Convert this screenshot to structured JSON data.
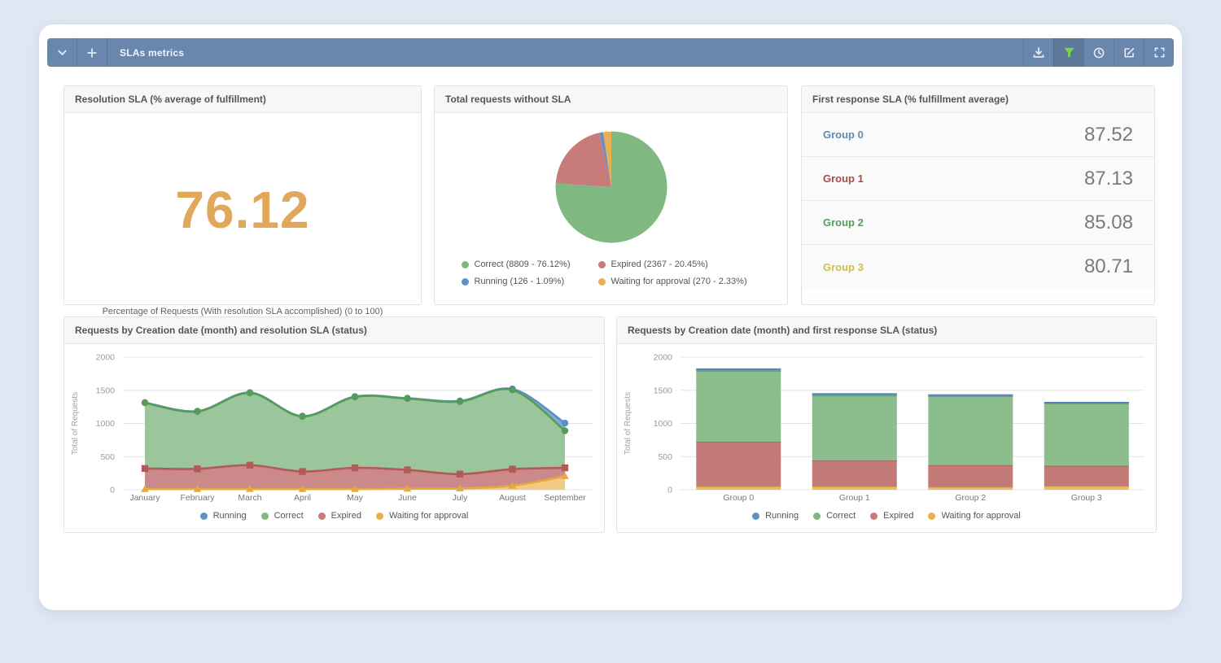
{
  "page": {
    "background": "#dfe7f2",
    "panel_background": "#ffffff"
  },
  "toolbar": {
    "title": "SLAs metrics",
    "background": "#6986ac",
    "left_buttons": [
      {
        "name": "collapse",
        "icon": "chevron-down-icon"
      },
      {
        "name": "add",
        "icon": "plus-icon"
      }
    ],
    "right_buttons": [
      {
        "name": "download",
        "icon": "download-icon"
      },
      {
        "name": "filter",
        "icon": "filter-icon",
        "icon_color": "#7ed04f",
        "active": true
      },
      {
        "name": "history",
        "icon": "clock-icon"
      },
      {
        "name": "edit",
        "icon": "edit-icon"
      },
      {
        "name": "fullscreen",
        "icon": "expand-icon"
      }
    ]
  },
  "cards": {
    "resolution_sla": {
      "title": "Resolution SLA (% average of fulfillment)",
      "value": "76.12",
      "value_color": "#e1a75b",
      "caption": "Percentage of Requests (With resolution SLA accomplished) (0 to 100)"
    },
    "requests_without_sla": {
      "title": "Total requests without SLA",
      "legend": [
        {
          "label": "Correct (8809 - 76.12%)",
          "color": "#7fb981"
        },
        {
          "label": "Expired (2367 - 20.45%)",
          "color": "#c77b7a"
        },
        {
          "label": "Running (126 - 1.09%)",
          "color": "#6292c4"
        },
        {
          "label": "Waiting for approval (270 - 2.33%)",
          "color": "#e9b052"
        }
      ]
    },
    "first_response_sla": {
      "title": "First response SLA (% fulfillment average)",
      "rows": [
        {
          "label": "Group 0",
          "value": "87.52",
          "color": "#5f8ab8"
        },
        {
          "label": "Group 1",
          "value": "87.13",
          "color": "#aa4d44"
        },
        {
          "label": "Group 2",
          "value": "85.08",
          "color": "#55a058"
        },
        {
          "label": "Group 3",
          "value": "80.71",
          "color": "#cdbf4e"
        }
      ]
    },
    "resolution_by_month": {
      "title": "Requests by Creation date (month) and resolution SLA (status)"
    },
    "first_response_by_group": {
      "title": "Requests by Creation date (month) and first response SLA (status)"
    }
  },
  "status_legend": [
    {
      "label": "Running",
      "color": "#6292c4"
    },
    {
      "label": "Correct",
      "color": "#7fb981"
    },
    {
      "label": "Expired",
      "color": "#c77b7a"
    },
    {
      "label": "Waiting for approval",
      "color": "#e9b052"
    }
  ],
  "chart_data": [
    {
      "id": "pie-without-sla",
      "type": "pie",
      "title": "Total requests without SLA",
      "slices": [
        {
          "label": "Correct",
          "count": 8809,
          "percent": 76.12,
          "color": "#7fb981"
        },
        {
          "label": "Expired",
          "count": 2367,
          "percent": 20.45,
          "color": "#c77b7a"
        },
        {
          "label": "Running",
          "count": 126,
          "percent": 1.09,
          "color": "#6292c4"
        },
        {
          "label": "Waiting for approval",
          "count": 270,
          "percent": 2.33,
          "color": "#e9b052"
        }
      ],
      "legend_position": "bottom"
    },
    {
      "id": "area-resolution",
      "type": "area",
      "stacked": true,
      "title": "Requests by Creation date (month) and resolution SLA (status)",
      "categories": [
        "January",
        "February",
        "March",
        "April",
        "May",
        "June",
        "July",
        "August",
        "September"
      ],
      "ylabel": "Total of Requests",
      "ylim": [
        0,
        2000
      ],
      "yticks": [
        0,
        500,
        1000,
        1500,
        2000
      ],
      "grid": true,
      "series": [
        {
          "name": "Waiting for approval",
          "marker": "triangle",
          "line": "#e7a83e",
          "fill": "#f2ca82",
          "cumulative": [
            10,
            10,
            10,
            10,
            10,
            15,
            20,
            60,
            205
          ]
        },
        {
          "name": "Expired",
          "marker": "square",
          "line": "#b25a58",
          "fill": "#cb8a89",
          "cumulative": [
            320,
            315,
            370,
            275,
            330,
            300,
            235,
            310,
            330
          ]
        },
        {
          "name": "Correct",
          "marker": "circle",
          "line": "#559c58",
          "fill": "#9bc69b",
          "cumulative": [
            1310,
            1180,
            1460,
            1105,
            1400,
            1375,
            1330,
            1505,
            890
          ]
        },
        {
          "name": "Running",
          "marker": "circle",
          "line": "#5d8fc7",
          "fill": "#85abd3",
          "cumulative": [
            1315,
            1185,
            1465,
            1110,
            1405,
            1380,
            1340,
            1520,
            1005
          ]
        }
      ]
    },
    {
      "id": "bars-first-response",
      "type": "bar",
      "stacked": true,
      "title": "Requests by Creation date (month) and first response SLA (status)",
      "categories": [
        "Group 0",
        "Group 1",
        "Group 2",
        "Group 3"
      ],
      "ylabel": "Total of Requests",
      "ylim": [
        0,
        2000
      ],
      "yticks": [
        0,
        500,
        1000,
        1500,
        2000
      ],
      "grid": true,
      "series": [
        {
          "name": "Waiting for approval",
          "color": "#ecba5e",
          "edge": "#d99f35",
          "values": [
            50,
            50,
            40,
            55
          ]
        },
        {
          "name": "Expired",
          "color": "#c37b7a",
          "edge": "#aa5a58",
          "values": [
            670,
            390,
            330,
            305
          ]
        },
        {
          "name": "Correct",
          "color": "#8cbd8d",
          "edge": "#5f9d62",
          "values": [
            1070,
            980,
            1040,
            940
          ]
        },
        {
          "name": "Running",
          "color": "#6b97c6",
          "edge": "#4d80b4",
          "values": [
            30,
            25,
            20,
            15
          ]
        }
      ]
    }
  ]
}
